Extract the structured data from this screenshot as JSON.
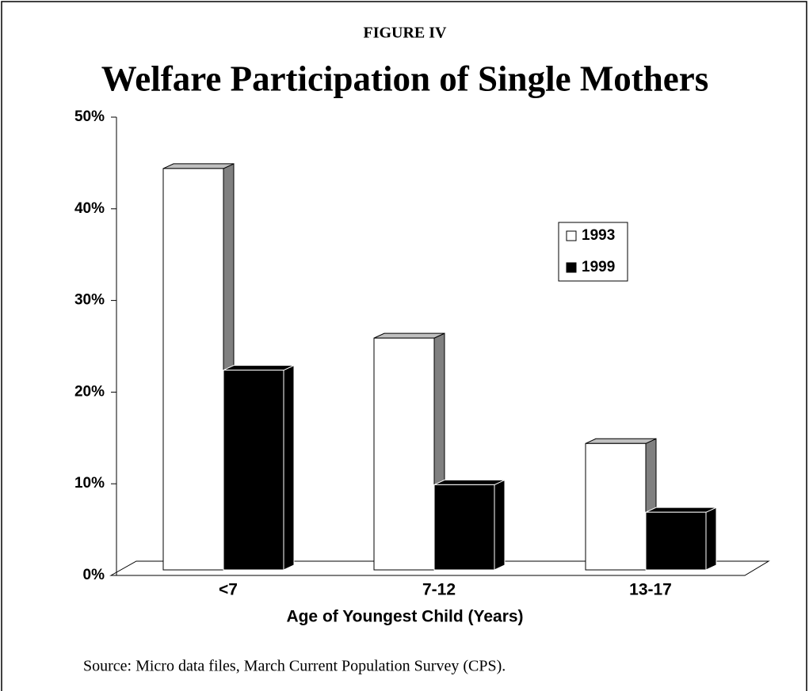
{
  "chart_data": {
    "type": "bar3d",
    "label": "FIGURE IV",
    "title": "Welfare Participation of Single Mothers",
    "x_label": "Age of Youngest Child (Years)",
    "source": "Source:  Micro data files, March Current Population Survey (CPS).",
    "categories": [
      "<7",
      "7-12",
      "13-17"
    ],
    "series": [
      {
        "name": "1993",
        "color": "#ffffff",
        "values": [
          45,
          26.5,
          15
        ]
      },
      {
        "name": "1999",
        "color": "#000000",
        "values": [
          23,
          10.5,
          7.5
        ]
      }
    ],
    "ylim": [
      0,
      50
    ],
    "yticks": [
      {
        "value": 0,
        "label": "0%"
      },
      {
        "value": 10,
        "label": "10%"
      },
      {
        "value": 20,
        "label": "20%"
      },
      {
        "value": 30,
        "label": "30%"
      },
      {
        "value": 40,
        "label": "40%"
      },
      {
        "value": 50,
        "label": "50%"
      }
    ],
    "legend": "right"
  }
}
